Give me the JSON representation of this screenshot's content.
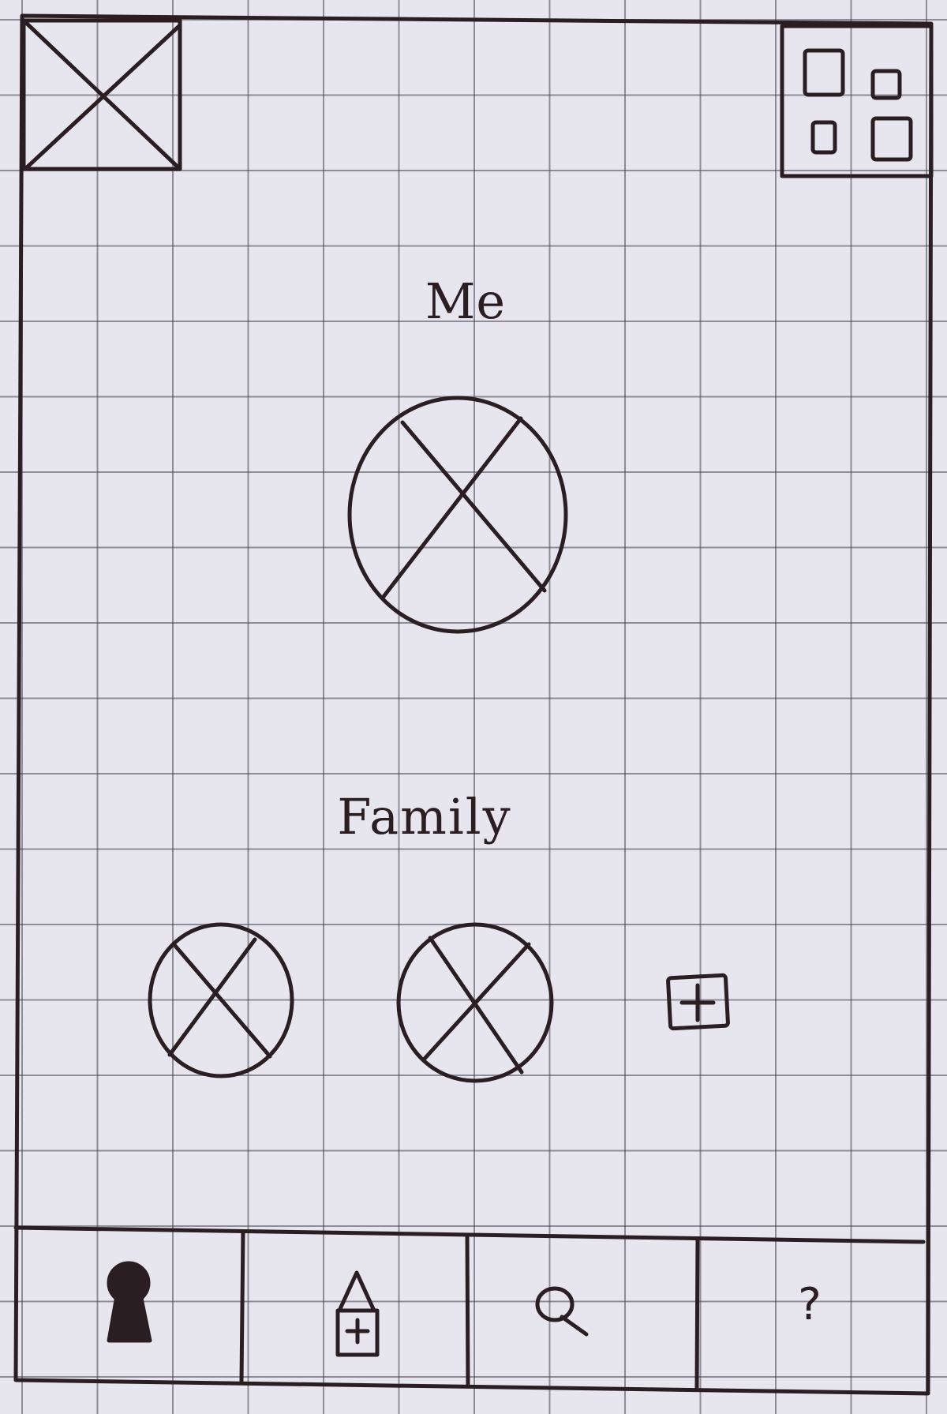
{
  "profile": {
    "me_label": "Me",
    "family_label": "Family",
    "family_members": [
      {
        "avatar": "image-placeholder-avatar"
      },
      {
        "avatar": "image-placeholder-avatar"
      }
    ],
    "add_member_icon": "add-icon"
  },
  "header": {
    "logo": "image-placeholder",
    "menu_icon": "grid-menu-icon"
  },
  "bottom_nav": {
    "items": [
      {
        "icon": "keyhole-icon"
      },
      {
        "icon": "home-icon"
      },
      {
        "icon": "search-icon"
      },
      {
        "icon": "help-icon",
        "label": "?"
      }
    ]
  },
  "colors": {
    "ink": "#2a1e22",
    "paper": "#e7e5ee",
    "grid": "#46444e"
  }
}
